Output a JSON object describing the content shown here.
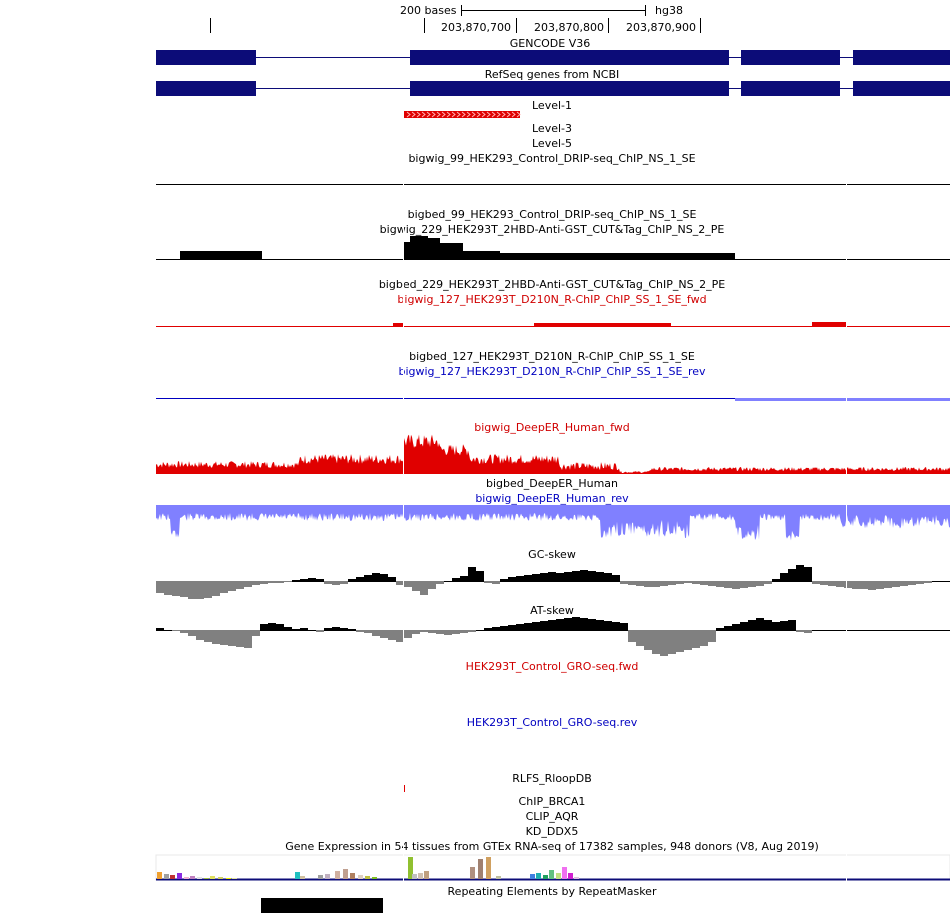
{
  "ruler": {
    "scale_label": "200 bases",
    "assembly": "hg38",
    "positions": [
      "203,870,700",
      "203,870,800",
      "203,870,900"
    ]
  },
  "tracks": {
    "gencode": "GENCODE V36",
    "refseq": "RefSeq genes from NCBI",
    "level1": "Level-1",
    "level3": "Level-3",
    "level5": "Level-5",
    "bigwig99": "bigwig_99_HEK293_Control_DRIP-seq_ChIP_NS_1_SE",
    "bigbed99": "bigbed_99_HEK293_Control_DRIP-seq_ChIP_NS_1_SE",
    "bigwig229": "bigwig_229_HEK293T_2HBD-Anti-GST_CUT&Tag_ChIP_NS_2_PE",
    "bigbed229": "bigbed_229_HEK293T_2HBD-Anti-GST_CUT&Tag_ChIP_NS_2_PE",
    "bigwig127fwd": "bigwig_127_HEK293T_D210N_R-ChIP_ChIP_SS_1_SE_fwd",
    "bigbed127": "bigbed_127_HEK293T_D210N_R-ChIP_ChIP_SS_1_SE",
    "bigwig127rev": "bigwig_127_HEK293T_D210N_R-ChIP_ChIP_SS_1_SE_rev",
    "deeper_fwd": "bigwig_DeepER_Human_fwd",
    "deeper_bed": "bigbed_DeepER_Human",
    "deeper_rev": "bigwig_DeepER_Human_rev",
    "gcskew": "GC-skew",
    "atskew": "AT-skew",
    "gro_fwd": "HEK293T_Control_GRO-seq.fwd",
    "gro_rev": "HEK293T_Control_GRO-seq.rev",
    "rlfs": "RLFS_RloopDB",
    "chip_brca1": "ChIP_BRCA1",
    "clip_aqr": "CLIP_AQR",
    "kd_ddx5": "KD_DDX5",
    "gtex": "Gene Expression in 54 tissues from GTEx RNA-seq of 17382 samples, 948 donors (V8, Aug 2019)",
    "repeatmasker": "Repeating Elements by RepeatMasker"
  },
  "colors": {
    "gene": "#0c0c78",
    "red": "#e00000",
    "blue_light": "#8080ff",
    "blue_dark": "#0000c0",
    "gray": "#808080"
  }
}
